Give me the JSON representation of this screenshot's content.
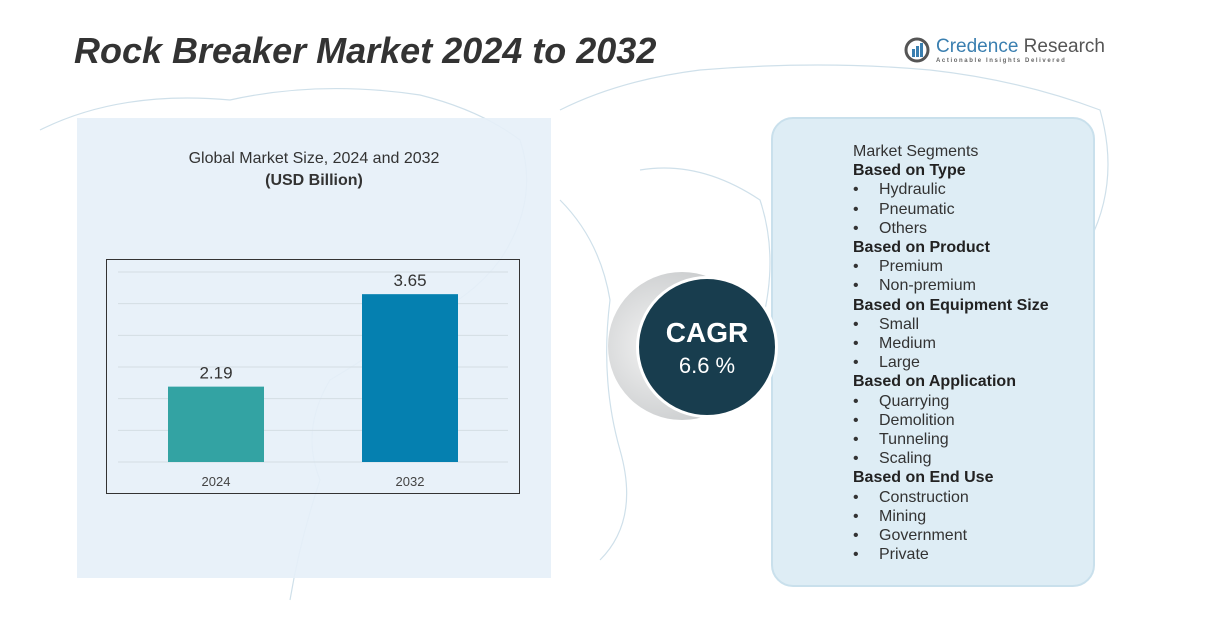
{
  "title": "Rock Breaker Market 2024 to 2032",
  "logo": {
    "name_part1": "Credence",
    "name_part2": "Research",
    "tagline": "Actionable Insights Delivered"
  },
  "chart_data": {
    "type": "bar",
    "title": "Global Market Size, 2024 and 2032",
    "subtitle": "(USD Billion)",
    "categories": [
      "2024",
      "2032"
    ],
    "values": [
      2.19,
      3.65
    ],
    "labels": [
      "2.19",
      "3.65"
    ],
    "colors": [
      "#33a3a3",
      "#0580b0"
    ],
    "ylim": [
      1,
      4
    ],
    "grid": true
  },
  "cagr": {
    "label": "CAGR",
    "value": "6.6 %"
  },
  "segments": {
    "heading": "Market Segments",
    "groups": [
      {
        "title": "Based on Type",
        "items": [
          "Hydraulic",
          "Pneumatic",
          "Others"
        ]
      },
      {
        "title": "Based on Product",
        "items": [
          "Premium",
          "Non-premium"
        ]
      },
      {
        "title": "Based on Equipment Size",
        "items": [
          "Small",
          "Medium",
          "Large"
        ]
      },
      {
        "title": "Based on Application",
        "items": [
          "Quarrying",
          "Demolition",
          "Tunneling",
          "Scaling"
        ]
      },
      {
        "title": "Based on End Use",
        "items": [
          "Construction",
          "Mining",
          "Government",
          "Private"
        ]
      }
    ]
  }
}
